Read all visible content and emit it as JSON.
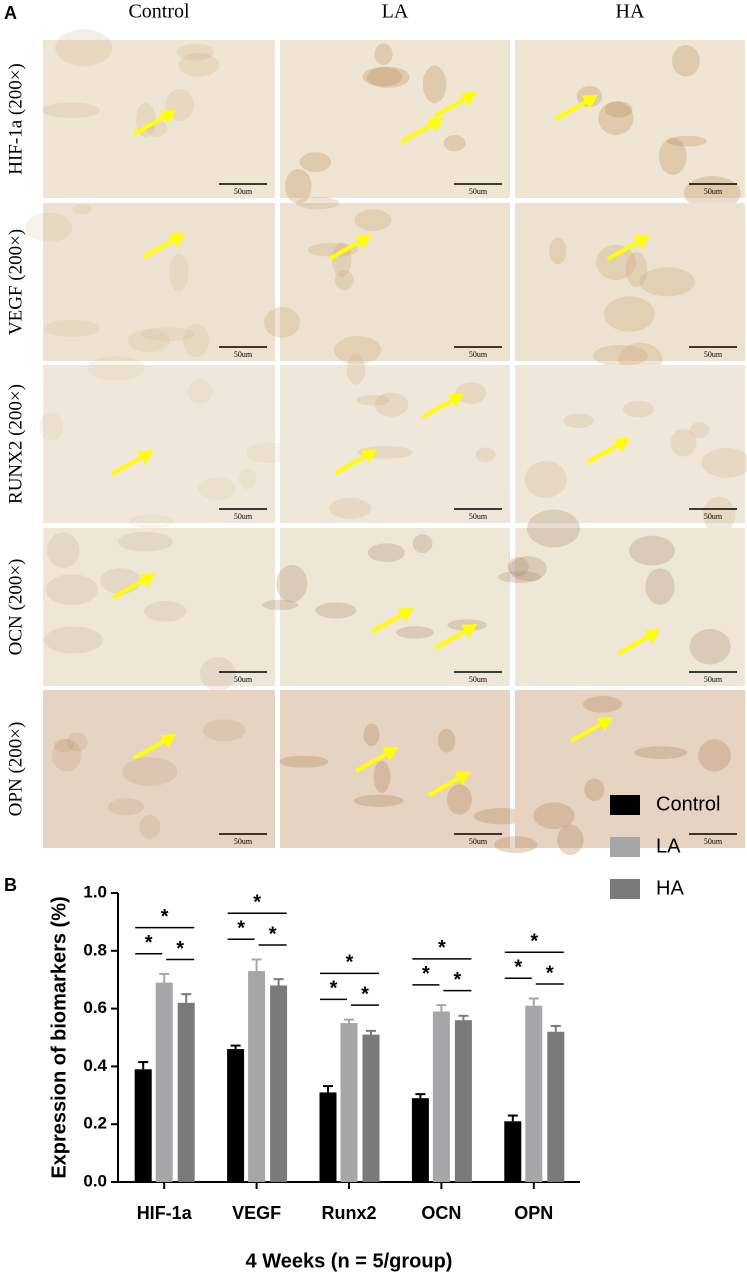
{
  "panel_a": {
    "label": "A",
    "columns": [
      "Control",
      "LA",
      "HA"
    ],
    "rows": [
      "HIF-1a (200×)",
      "VEGF (200×)",
      "RUNX2 (200×)",
      "OCN (200×)",
      "OPN (200×)"
    ],
    "scale_bar": "50um"
  },
  "chart_data": {
    "type": "bar",
    "panel_label": "B",
    "y_label": "Expression of biomarkers (%)",
    "x_label": "4 Weeks (n = 5/group)",
    "categories": [
      "HIF-1a",
      "VEGF",
      "Runx2",
      "OCN",
      "OPN"
    ],
    "series": [
      {
        "name": "Control",
        "color": "#000000",
        "values": [
          0.39,
          0.46,
          0.31,
          0.29,
          0.21
        ],
        "errors": [
          0.025,
          0.012,
          0.022,
          0.014,
          0.02
        ]
      },
      {
        "name": "LA",
        "color": "#a6a6a8",
        "values": [
          0.69,
          0.73,
          0.55,
          0.59,
          0.61
        ],
        "errors": [
          0.03,
          0.04,
          0.012,
          0.022,
          0.025
        ]
      },
      {
        "name": "HA",
        "color": "#7a7a7a",
        "values": [
          0.62,
          0.68,
          0.51,
          0.56,
          0.52
        ],
        "errors": [
          0.03,
          0.022,
          0.013,
          0.015,
          0.02
        ]
      }
    ],
    "ylim": [
      0,
      1.0
    ],
    "yticks": [
      {
        "value": 0,
        "label": "0.0"
      },
      0.2,
      0.4,
      0.6,
      0.8,
      {
        "value": 1.0,
        "label": "1.0"
      }
    ],
    "significance_label": "*",
    "legend": "right"
  }
}
